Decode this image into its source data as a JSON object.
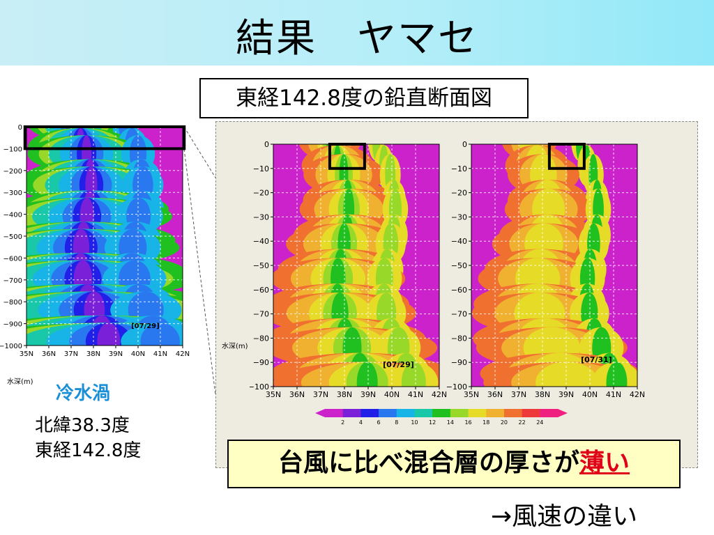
{
  "header": {
    "title": "結果　ヤマセ"
  },
  "subtitle": "東経142.8度の鉛直断面図",
  "left_note": {
    "cold_eddy": "冷水渦",
    "lat": "北緯38.3度",
    "lon": "東経142.8度",
    "depth_label": "水深(m)"
  },
  "mid_depth_label": "水深(m)",
  "conclusion": {
    "text": "台風に比べ混合層の厚さが",
    "emph": "薄い"
  },
  "footer_note": "→風速の違い",
  "colors": {
    "header_start": "#c9eef6",
    "header_end": "#92e8f8",
    "cold_eddy": "#1a8fd8",
    "emphasis": "#e0001a"
  },
  "chart_data": [
    {
      "type": "heatmap",
      "date_label": "[07/29]",
      "x_ticks": [
        "35N",
        "36N",
        "37N",
        "38N",
        "39N",
        "40N",
        "41N",
        "42N"
      ],
      "y_ticks": [
        "0",
        "−100",
        "−200",
        "−300",
        "−400",
        "−500",
        "−600",
        "−700",
        "−800",
        "−900",
        "−1000"
      ],
      "ylim": [
        -1000,
        0
      ]
    },
    {
      "type": "heatmap",
      "date_label": "[07/29]",
      "x_ticks": [
        "35N",
        "36N",
        "37N",
        "38N",
        "39N",
        "40N",
        "41N",
        "42N"
      ],
      "y_ticks": [
        "0",
        "−10",
        "−20",
        "−30",
        "−40",
        "−50",
        "−60",
        "−70",
        "−80",
        "−90",
        "−100"
      ],
      "ylim": [
        -100,
        0
      ]
    },
    {
      "type": "heatmap",
      "date_label": "[07/31]",
      "x_ticks": [
        "35N",
        "36N",
        "37N",
        "38N",
        "39N",
        "40N",
        "41N",
        "42N"
      ],
      "y_ticks": [
        "0",
        "−10",
        "−20",
        "−30",
        "−40",
        "−50",
        "−60",
        "−70",
        "−80",
        "−90",
        "−100"
      ],
      "ylim": [
        -100,
        0
      ]
    }
  ],
  "colorbar": {
    "ticks": [
      "2",
      "4",
      "6",
      "8",
      "10",
      "12",
      "14",
      "16",
      "18",
      "20",
      "22",
      "24"
    ],
    "colors": [
      "#cc22cc",
      "#7a20d8",
      "#2020e8",
      "#2a78f0",
      "#18b4e8",
      "#18c8a8",
      "#20c020",
      "#98d828",
      "#e6dc28",
      "#f0b030",
      "#f07030",
      "#ee3a3a",
      "#f02080"
    ]
  }
}
